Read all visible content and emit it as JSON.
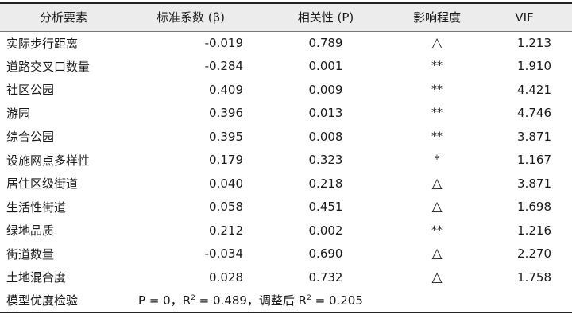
{
  "header": {
    "col_factor": "分析要素",
    "col_beta": "标准系数 (β)",
    "col_p": "相关性 (P)",
    "col_impact": "影响程度",
    "col_vif": "VIF"
  },
  "rows": [
    {
      "factor": "实际步行距离",
      "beta": "-0.019",
      "p": "0.789",
      "impact": "△",
      "vif": "1.213"
    },
    {
      "factor": "道路交叉口数量",
      "beta": "-0.284",
      "p": "0.001",
      "impact": "**",
      "vif": "1.910"
    },
    {
      "factor": "社区公园",
      "beta": "0.409",
      "p": "0.009",
      "impact": "**",
      "vif": "4.421"
    },
    {
      "factor": "游园",
      "beta": "0.396",
      "p": "0.013",
      "impact": "**",
      "vif": "4.746"
    },
    {
      "factor": "综合公园",
      "beta": "0.395",
      "p": "0.008",
      "impact": "**",
      "vif": "3.871"
    },
    {
      "factor": "设施网点多样性",
      "beta": "0.179",
      "p": "0.323",
      "impact": "*",
      "vif": "1.167"
    },
    {
      "factor": "居住区级街道",
      "beta": "0.040",
      "p": "0.218",
      "impact": "△",
      "vif": "3.871"
    },
    {
      "factor": "生活性街道",
      "beta": "0.058",
      "p": "0.451",
      "impact": "△",
      "vif": "1.698"
    },
    {
      "factor": "绿地品质",
      "beta": "0.212",
      "p": "0.002",
      "impact": "**",
      "vif": "1.216"
    },
    {
      "factor": "街道数量",
      "beta": "-0.034",
      "p": "0.690",
      "impact": "△",
      "vif": "2.270"
    },
    {
      "factor": "土地混合度",
      "beta": "0.028",
      "p": "0.732",
      "impact": "△",
      "vif": "1.758"
    }
  ],
  "model": {
    "label": "模型优度检验",
    "p_text": "P = 0，R",
    "r2_sup": "2",
    "r2_text": " = 0.489，调整后 R",
    "adj_sup": "2",
    "adj_text": " = 0.205"
  }
}
